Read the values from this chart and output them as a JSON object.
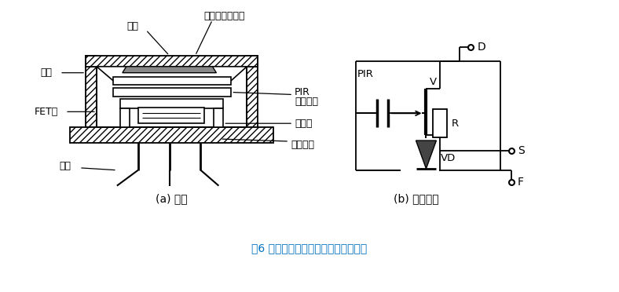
{
  "title": "图6 红外传感器内部结构与内部电路图",
  "title_color": "#0070c0",
  "background_color": "#ffffff",
  "label_a": "(a) 结构",
  "label_b": "(b) 内部电路"
}
